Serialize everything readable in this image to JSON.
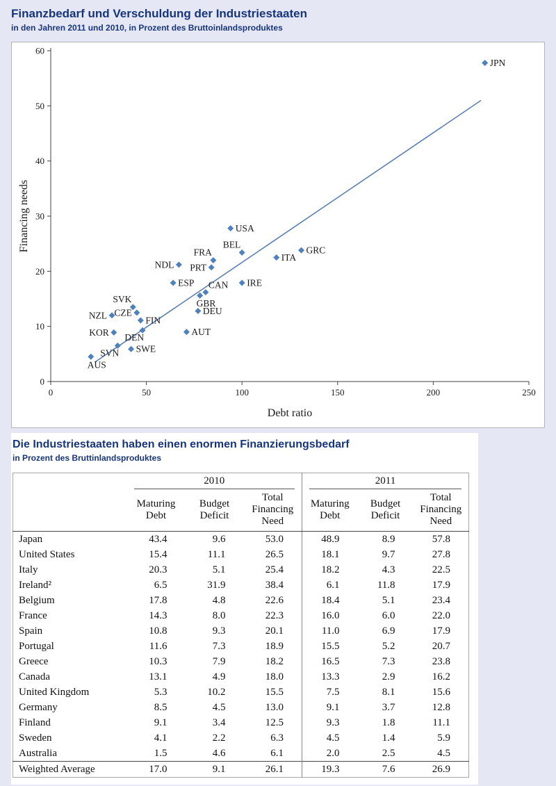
{
  "colors": {
    "page_bg": "#E5E8F4",
    "panel_bg": "#FFFFFF",
    "title_blue": "#17357C",
    "marker": "#4F81BD",
    "trend": "#5B7FB0",
    "axis": "#404040",
    "table_rule": "#444444"
  },
  "section1": {
    "title": "Finanzbedarf und Verschuldung der Industriestaaten",
    "subtitle": "in den Jahren 2011 und 2010, in Prozent des Bruttoinlandsproduktes"
  },
  "section2": {
    "title": "Die Industriestaaten haben einen enormen Finanzierungsbedarf",
    "subtitle": "in Prozent des Bruttinlandsproduktes"
  },
  "chart_data": [
    {
      "type": "scatter",
      "title": "Finanzbedarf und Verschuldung der Industriestaaten",
      "xlabel": "Debt ratio",
      "ylabel": "Financing needs",
      "xlim": [
        0,
        250
      ],
      "ylim": [
        0,
        60
      ],
      "xticks": [
        0,
        50,
        100,
        150,
        200,
        250
      ],
      "yticks": [
        0,
        10,
        20,
        30,
        40,
        50,
        60
      ],
      "grid": false,
      "legend": false,
      "marker_color": "#4F81BD",
      "trendline": {
        "x1": 23,
        "y1": 3.5,
        "x2": 225,
        "y2": 51,
        "color": "#5B7FB0"
      },
      "points": [
        {
          "label": "JPN",
          "x": 227,
          "y": 57.8,
          "label_side": "right"
        },
        {
          "label": "USA",
          "x": 94,
          "y": 27.8,
          "label_side": "right"
        },
        {
          "label": "GRC",
          "x": 131,
          "y": 23.8,
          "label_side": "right"
        },
        {
          "label": "BEL",
          "x": 100,
          "y": 23.4,
          "label_side": "above-left"
        },
        {
          "label": "ITA",
          "x": 118,
          "y": 22.5,
          "label_side": "right"
        },
        {
          "label": "FRA",
          "x": 85,
          "y": 22.0,
          "label_side": "above-left"
        },
        {
          "label": "NDL",
          "x": 67,
          "y": 21.2,
          "label_side": "left"
        },
        {
          "label": "PRT",
          "x": 84,
          "y": 20.7,
          "label_side": "left"
        },
        {
          "label": "ESP",
          "x": 64,
          "y": 17.9,
          "label_side": "right"
        },
        {
          "label": "IRE",
          "x": 100,
          "y": 17.9,
          "label_side": "right"
        },
        {
          "label": "CAN",
          "x": 81,
          "y": 16.2,
          "label_side": "above-right"
        },
        {
          "label": "GBR",
          "x": 78,
          "y": 15.6,
          "label_side": "below"
        },
        {
          "label": "SVK",
          "x": 43,
          "y": 13.5,
          "label_side": "above-left"
        },
        {
          "label": "DEU",
          "x": 77,
          "y": 12.8,
          "label_side": "right"
        },
        {
          "label": "CZE",
          "x": 45,
          "y": 12.5,
          "label_side": "left"
        },
        {
          "label": "NZL",
          "x": 32,
          "y": 12.0,
          "label_side": "left"
        },
        {
          "label": "FIN",
          "x": 47,
          "y": 11.1,
          "label_side": "right"
        },
        {
          "label": "DEN",
          "x": 48,
          "y": 9.3,
          "label_side": "below-left"
        },
        {
          "label": "AUT",
          "x": 71,
          "y": 9.0,
          "label_side": "right"
        },
        {
          "label": "KOR",
          "x": 33,
          "y": 8.9,
          "label_side": "left"
        },
        {
          "label": "SVN",
          "x": 35,
          "y": 6.5,
          "label_side": "below-left"
        },
        {
          "label": "SWE",
          "x": 42,
          "y": 5.9,
          "label_side": "right"
        },
        {
          "label": "AUS",
          "x": 21,
          "y": 4.5,
          "label_side": "below"
        }
      ]
    },
    {
      "type": "table",
      "title": "Die Industriestaaten haben einen enormen Finanzierungsbedarf",
      "column_groups": [
        "2010",
        "2011"
      ],
      "sub_columns": [
        "Maturing Debt",
        "Budget Deficit",
        "Total Financing Need"
      ],
      "rows": [
        [
          "Japan",
          "43.4",
          "9.6",
          "53.0",
          "48.9",
          "8.9",
          "57.8"
        ],
        [
          "United States",
          "15.4",
          "11.1",
          "26.5",
          "18.1",
          "9.7",
          "27.8"
        ],
        [
          "Italy",
          "20.3",
          "5.1",
          "25.4",
          "18.2",
          "4.3",
          "22.5"
        ],
        [
          "Ireland²",
          "6.5",
          "31.9",
          "38.4",
          "6.1",
          "11.8",
          "17.9"
        ],
        [
          "Belgium",
          "17.8",
          "4.8",
          "22.6",
          "18.4",
          "5.1",
          "23.4"
        ],
        [
          "France",
          "14.3",
          "8.0",
          "22.3",
          "16.0",
          "6.0",
          "22.0"
        ],
        [
          "Spain",
          "10.8",
          "9.3",
          "20.1",
          "11.0",
          "6.9",
          "17.9"
        ],
        [
          "Portugal",
          "11.6",
          "7.3",
          "18.9",
          "15.5",
          "5.2",
          "20.7"
        ],
        [
          "Greece",
          "10.3",
          "7.9",
          "18.2",
          "16.5",
          "7.3",
          "23.8"
        ],
        [
          "Canada",
          "13.1",
          "4.9",
          "18.0",
          "13.3",
          "2.9",
          "16.2"
        ],
        [
          "United Kingdom",
          "5.3",
          "10.2",
          "15.5",
          "7.5",
          "8.1",
          "15.6"
        ],
        [
          "Germany",
          "8.5",
          "4.5",
          "13.0",
          "9.1",
          "3.7",
          "12.8"
        ],
        [
          "Finland",
          "9.1",
          "3.4",
          "12.5",
          "9.3",
          "1.8",
          "11.1"
        ],
        [
          "Sweden",
          "4.1",
          "2.2",
          "6.3",
          "4.5",
          "1.4",
          "5.9"
        ],
        [
          "Australia",
          "1.5",
          "4.6",
          "6.1",
          "2.0",
          "2.5",
          "4.5"
        ],
        [
          "Weighted Average",
          "17.0",
          "9.1",
          "26.1",
          "19.3",
          "7.6",
          "26.9"
        ]
      ]
    }
  ]
}
